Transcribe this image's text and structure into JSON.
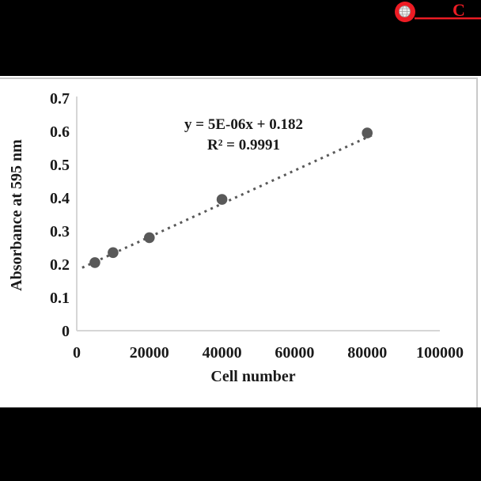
{
  "header": {
    "background": "#000000",
    "logo": {
      "letter": "C",
      "accent_color": "#ed1c24",
      "globe_icon": "globe-icon"
    }
  },
  "chart_data": {
    "type": "scatter",
    "title": "",
    "xlabel": "Cell number",
    "ylabel": "Absorbance at 595 nm",
    "xlim": [
      0,
      100000
    ],
    "ylim": [
      0,
      0.7
    ],
    "x_ticks": [
      0,
      20000,
      40000,
      60000,
      80000,
      100000
    ],
    "y_ticks": [
      0,
      0.1,
      0.2,
      0.3,
      0.4,
      0.5,
      0.6,
      0.7
    ],
    "grid": false,
    "legend_position": "none",
    "points": [
      {
        "x": 5000,
        "y": 0.205
      },
      {
        "x": 10000,
        "y": 0.235
      },
      {
        "x": 20000,
        "y": 0.28
      },
      {
        "x": 40000,
        "y": 0.395
      },
      {
        "x": 80000,
        "y": 0.595
      }
    ],
    "trendline": {
      "style": "dotted",
      "slope": 5e-06,
      "intercept": 0.182,
      "x_start": 1500,
      "x_end": 81500,
      "equation_label": "y = 5E-06x + 0.182",
      "r_squared_label": "R² = 0.9991"
    },
    "colors": {
      "point": "#595959",
      "trendline": "#595959",
      "axis_line": "#d6d6d6",
      "text": "#1a1a1a"
    }
  },
  "footer": {
    "background": "#000000"
  }
}
